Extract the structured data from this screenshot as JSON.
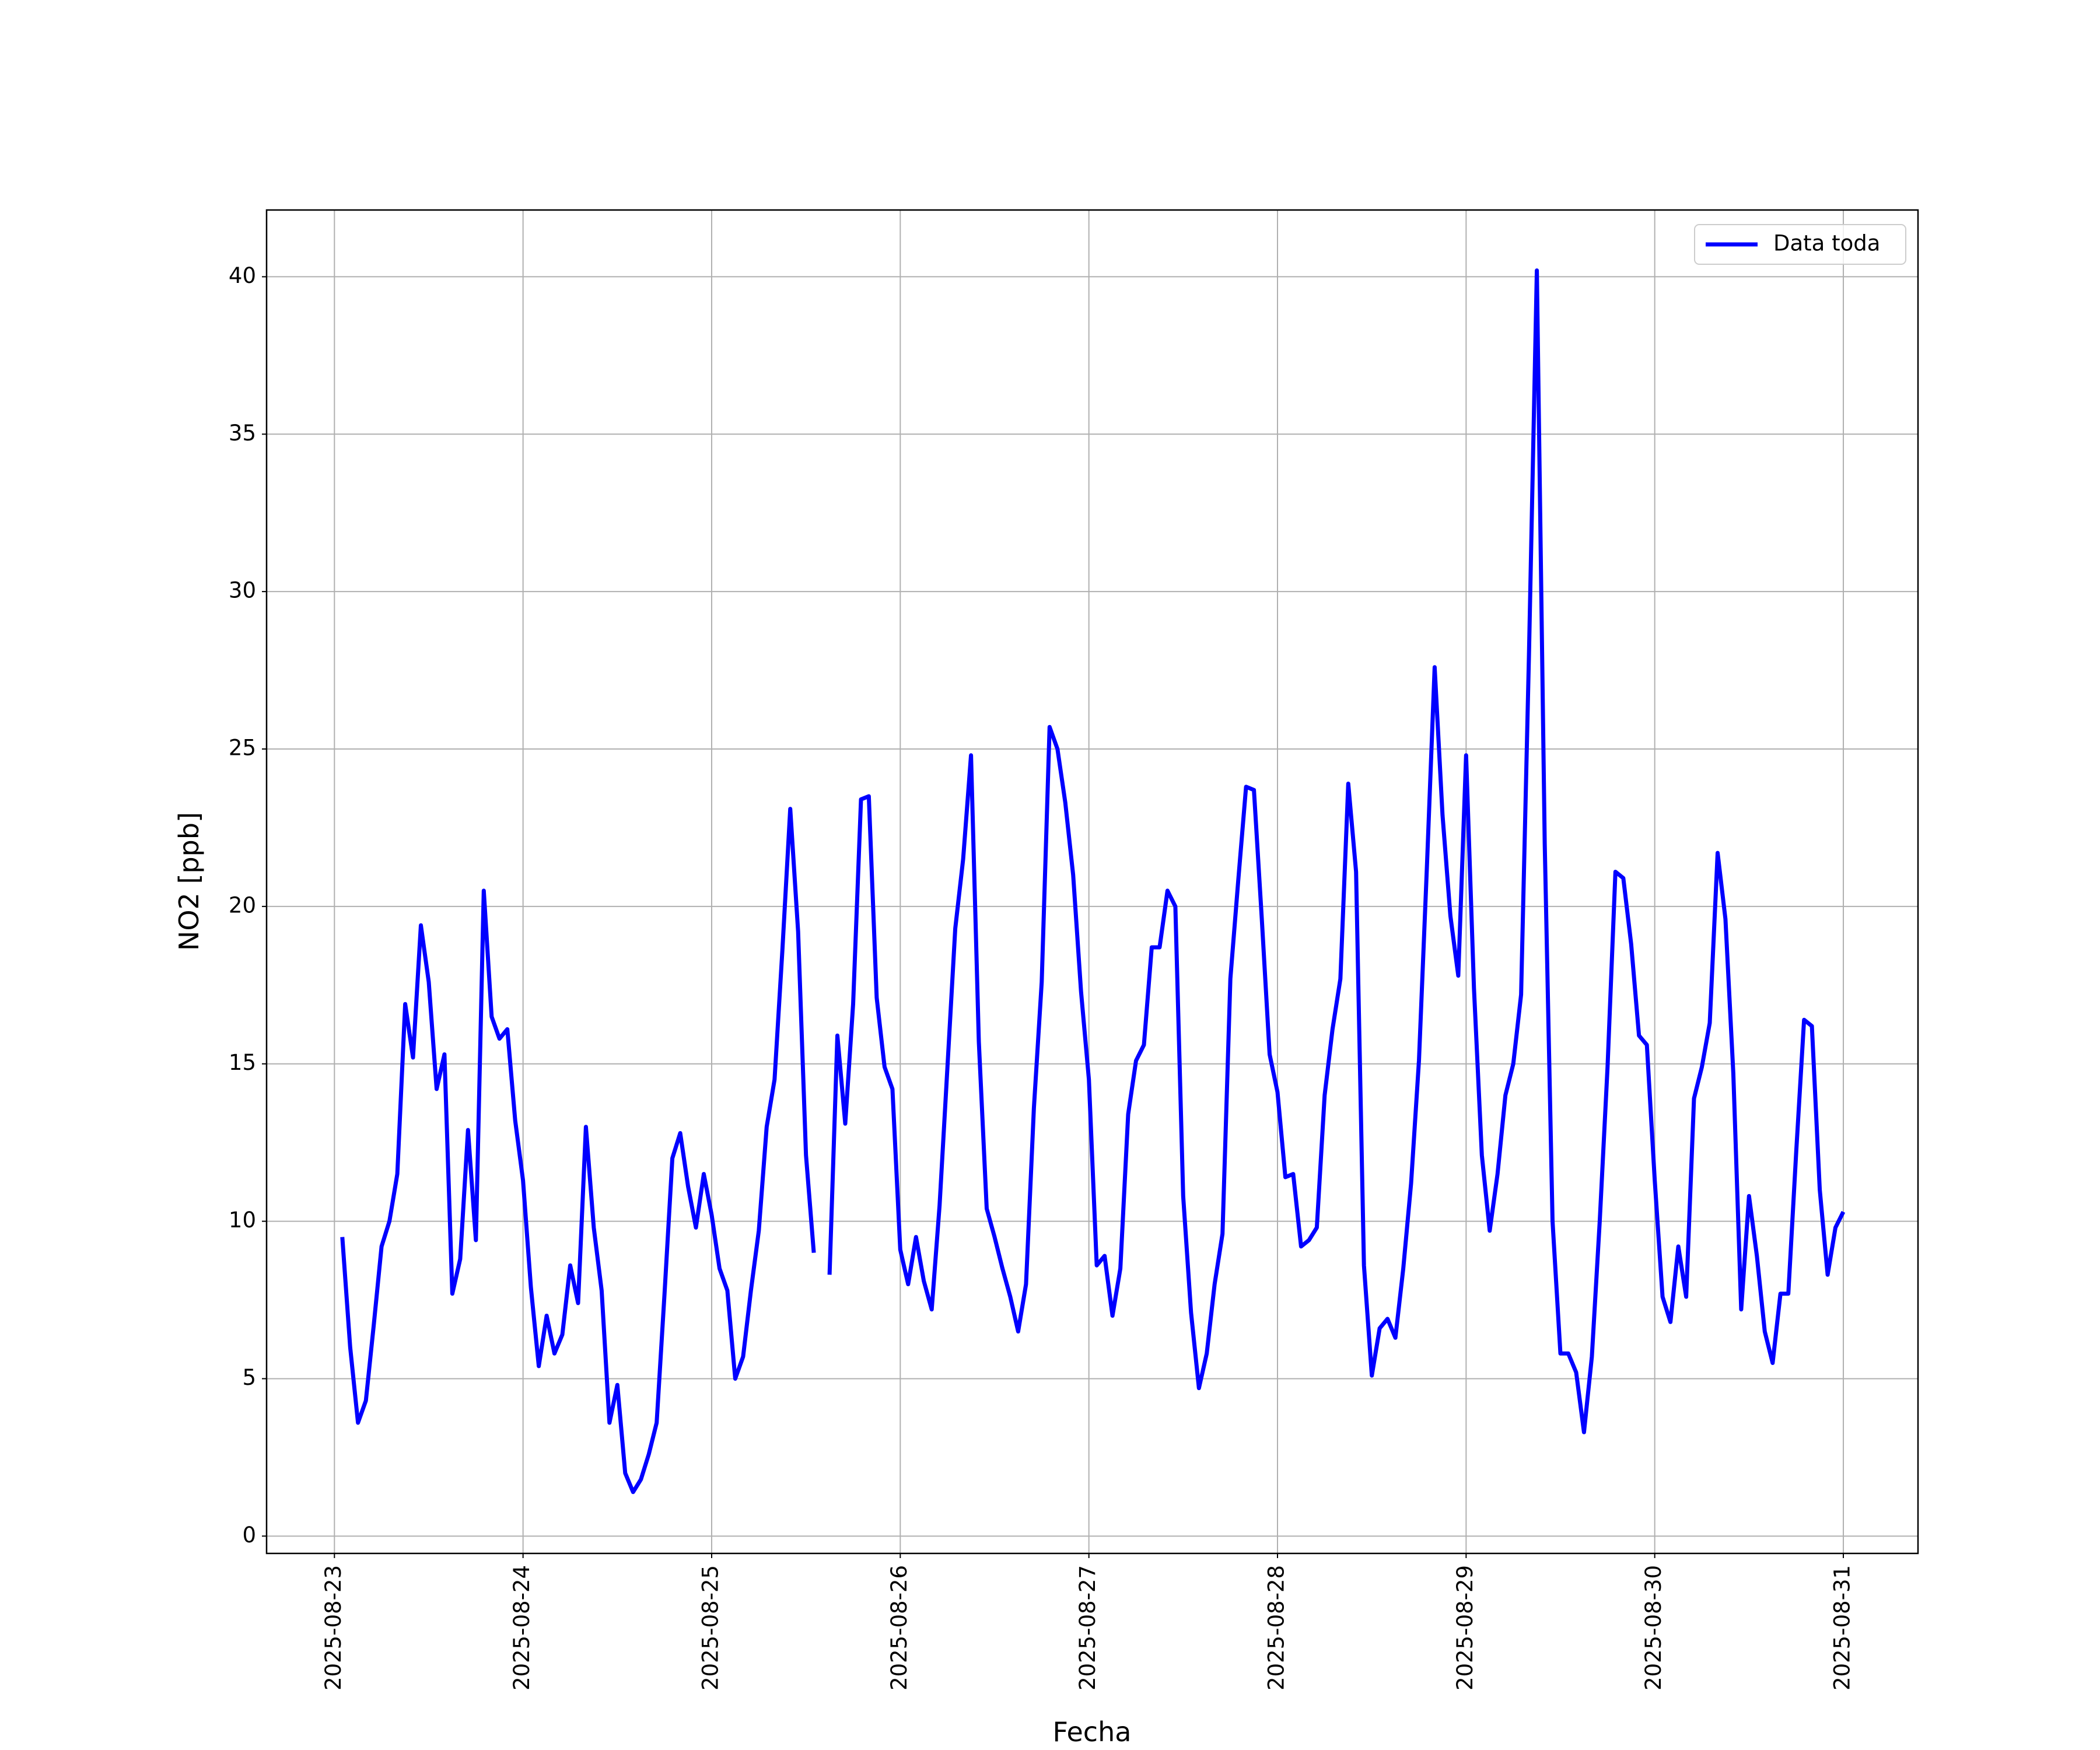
{
  "chart_data": {
    "type": "line",
    "xlabel": "Fecha",
    "ylabel": "NO2 [ppb]",
    "x": [
      "2025-08-23 01:00",
      "2025-08-23 02:00",
      "2025-08-23 03:00",
      "2025-08-23 04:00",
      "2025-08-23 05:00",
      "2025-08-23 06:00",
      "2025-08-23 07:00",
      "2025-08-23 08:00",
      "2025-08-23 09:00",
      "2025-08-23 10:00",
      "2025-08-23 11:00",
      "2025-08-23 12:00",
      "2025-08-23 13:00",
      "2025-08-23 14:00",
      "2025-08-23 15:00",
      "2025-08-23 16:00",
      "2025-08-23 17:00",
      "2025-08-23 18:00",
      "2025-08-23 19:00",
      "2025-08-23 20:00",
      "2025-08-23 21:00",
      "2025-08-23 22:00",
      "2025-08-23 23:00",
      "2025-08-24 00:00",
      "2025-08-24 01:00",
      "2025-08-24 02:00",
      "2025-08-24 03:00",
      "2025-08-24 04:00",
      "2025-08-24 05:00",
      "2025-08-24 06:00",
      "2025-08-24 07:00",
      "2025-08-24 08:00",
      "2025-08-24 09:00",
      "2025-08-24 10:00",
      "2025-08-24 11:00",
      "2025-08-24 12:00",
      "2025-08-24 13:00",
      "2025-08-24 14:00",
      "2025-08-24 15:00",
      "2025-08-24 16:00",
      "2025-08-24 17:00",
      "2025-08-24 18:00",
      "2025-08-24 19:00",
      "2025-08-24 20:00",
      "2025-08-24 21:00",
      "2025-08-24 22:00",
      "2025-08-24 23:00",
      "2025-08-25 00:00",
      "2025-08-25 01:00",
      "2025-08-25 02:00",
      "2025-08-25 03:00",
      "2025-08-25 04:00",
      "2025-08-25 05:00",
      "2025-08-25 06:00",
      "2025-08-25 07:00",
      "2025-08-25 08:00",
      "2025-08-25 09:00",
      "2025-08-25 10:00",
      "2025-08-25 11:00",
      "2025-08-25 12:00",
      "2025-08-25 13:00",
      "2025-08-25 14:00",
      "2025-08-25 15:00",
      "2025-08-25 16:00",
      "2025-08-25 17:00",
      "2025-08-25 18:00",
      "2025-08-25 19:00",
      "2025-08-25 20:00",
      "2025-08-25 21:00",
      "2025-08-25 22:00",
      "2025-08-25 23:00",
      "2025-08-26 00:00",
      "2025-08-26 01:00",
      "2025-08-26 02:00",
      "2025-08-26 03:00",
      "2025-08-26 04:00",
      "2025-08-26 05:00",
      "2025-08-26 06:00",
      "2025-08-26 07:00",
      "2025-08-26 08:00",
      "2025-08-26 09:00",
      "2025-08-26 10:00",
      "2025-08-26 11:00",
      "2025-08-26 12:00",
      "2025-08-26 13:00",
      "2025-08-26 14:00",
      "2025-08-26 15:00",
      "2025-08-26 16:00",
      "2025-08-26 17:00",
      "2025-08-26 18:00",
      "2025-08-26 19:00",
      "2025-08-26 20:00",
      "2025-08-26 21:00",
      "2025-08-26 22:00",
      "2025-08-26 23:00",
      "2025-08-27 00:00",
      "2025-08-27 01:00",
      "2025-08-27 02:00",
      "2025-08-27 03:00",
      "2025-08-27 04:00",
      "2025-08-27 05:00",
      "2025-08-27 06:00",
      "2025-08-27 07:00",
      "2025-08-27 08:00",
      "2025-08-27 09:00",
      "2025-08-27 10:00",
      "2025-08-27 11:00",
      "2025-08-27 12:00",
      "2025-08-27 13:00",
      "2025-08-27 14:00",
      "2025-08-27 15:00",
      "2025-08-27 16:00",
      "2025-08-27 17:00",
      "2025-08-27 18:00",
      "2025-08-27 19:00",
      "2025-08-27 20:00",
      "2025-08-27 21:00",
      "2025-08-27 22:00",
      "2025-08-27 23:00",
      "2025-08-28 00:00",
      "2025-08-28 01:00",
      "2025-08-28 02:00",
      "2025-08-28 03:00",
      "2025-08-28 04:00",
      "2025-08-28 05:00",
      "2025-08-28 06:00",
      "2025-08-28 07:00",
      "2025-08-28 08:00",
      "2025-08-28 09:00",
      "2025-08-28 10:00",
      "2025-08-28 11:00",
      "2025-08-28 12:00",
      "2025-08-28 13:00",
      "2025-08-28 14:00",
      "2025-08-28 15:00",
      "2025-08-28 16:00",
      "2025-08-28 17:00",
      "2025-08-28 18:00",
      "2025-08-28 19:00",
      "2025-08-28 20:00",
      "2025-08-28 21:00",
      "2025-08-28 22:00",
      "2025-08-28 23:00",
      "2025-08-29 00:00",
      "2025-08-29 01:00",
      "2025-08-29 02:00",
      "2025-08-29 03:00",
      "2025-08-29 04:00",
      "2025-08-29 05:00",
      "2025-08-29 06:00",
      "2025-08-29 07:00",
      "2025-08-29 08:00",
      "2025-08-29 09:00",
      "2025-08-29 10:00",
      "2025-08-29 11:00",
      "2025-08-29 12:00",
      "2025-08-29 13:00",
      "2025-08-29 14:00",
      "2025-08-29 15:00",
      "2025-08-29 16:00",
      "2025-08-29 17:00",
      "2025-08-29 18:00",
      "2025-08-29 19:00",
      "2025-08-29 20:00",
      "2025-08-29 21:00",
      "2025-08-29 22:00",
      "2025-08-29 23:00",
      "2025-08-30 00:00",
      "2025-08-30 01:00",
      "2025-08-30 02:00",
      "2025-08-30 03:00",
      "2025-08-30 04:00",
      "2025-08-30 05:00",
      "2025-08-30 06:00",
      "2025-08-30 07:00",
      "2025-08-30 08:00",
      "2025-08-30 09:00",
      "2025-08-30 10:00",
      "2025-08-30 11:00",
      "2025-08-30 12:00",
      "2025-08-30 13:00",
      "2025-08-30 14:00",
      "2025-08-30 15:00",
      "2025-08-30 16:00",
      "2025-08-30 17:00",
      "2025-08-30 18:00",
      "2025-08-30 19:00",
      "2025-08-30 20:00",
      "2025-08-30 21:00",
      "2025-08-30 22:00",
      "2025-08-30 23:00",
      "2025-08-31 00:00"
    ],
    "series": [
      {
        "name": "Data toda",
        "color": "#0000ff",
        "values": [
          9.5,
          6,
          3.6,
          4.3,
          6.7,
          9.2,
          10,
          11.5,
          16.9,
          15.2,
          19.4,
          17.6,
          14.2,
          15.3,
          7.7,
          8.8,
          12.9,
          9.4,
          20.5,
          16.5,
          15.8,
          16.1,
          13.2,
          11.3,
          7.9,
          5.4,
          7,
          5.8,
          6.4,
          8.6,
          7.4,
          13,
          9.8,
          7.8,
          3.6,
          4.8,
          2,
          1.4,
          1.8,
          2.6,
          3.6,
          7.7,
          12,
          12.8,
          11.1,
          9.8,
          11.5,
          10.2,
          8.5,
          7.8,
          5,
          5.7,
          7.8,
          9.7,
          13,
          14.5,
          18.6,
          23.1,
          19.2,
          12.1,
          9,
          null,
          8.3,
          15.9,
          13.1,
          16.9,
          23.4,
          23.5,
          17.1,
          14.9,
          14.2,
          9.1,
          8,
          9.5,
          8.1,
          7.2,
          10.5,
          14.9,
          19.3,
          21.5,
          24.8,
          15.7,
          10.4,
          9.5,
          8.5,
          7.6,
          6.5,
          8,
          13.6,
          17.6,
          25.7,
          25,
          23.3,
          21,
          17.3,
          14.5,
          8.6,
          8.9,
          7,
          8.5,
          13.4,
          15.1,
          15.6,
          18.7,
          18.7,
          20.5,
          20,
          10.8,
          7.1,
          4.7,
          5.8,
          8,
          9.6,
          17.7,
          20.8,
          23.8,
          23.7,
          19.6,
          15.3,
          14.1,
          11.4,
          11.5,
          9.2,
          9.4,
          9.8,
          14,
          16.1,
          17.7,
          23.9,
          21.1,
          8.6,
          5.1,
          6.6,
          6.9,
          6.3,
          8.5,
          11.2,
          15.1,
          21.2,
          27.6,
          22.9,
          19.7,
          17.8,
          24.8,
          17.4,
          12.1,
          9.7,
          11.5,
          14,
          15,
          17.2,
          28,
          40.2,
          22,
          10,
          5.8,
          5.8,
          5.2,
          3.3,
          5.7,
          10,
          14.9,
          21.1,
          20.9,
          18.8,
          15.9,
          15.6,
          11.3,
          7.6,
          6.8,
          9.2,
          7.6,
          13.9,
          14.9,
          16.3,
          21.7,
          19.6,
          14.7,
          7.2,
          10.8,
          8.9,
          6.5,
          5.5,
          7.7,
          7.7,
          12.2,
          16.4,
          16.2,
          11,
          8.3,
          9.8,
          10.3
        ]
      }
    ],
    "xlim": [
      "2025-08-22 15:22",
      "2025-08-31 09:30"
    ],
    "xticks": [
      "2025-08-23",
      "2025-08-24",
      "2025-08-25",
      "2025-08-26",
      "2025-08-27",
      "2025-08-28",
      "2025-08-29",
      "2025-08-30",
      "2025-08-31"
    ],
    "ylim": [
      -0.55,
      42.12
    ],
    "yticks": [
      0,
      5,
      10,
      15,
      20,
      25,
      30,
      35,
      40
    ],
    "grid": true,
    "legend": "upper right"
  }
}
